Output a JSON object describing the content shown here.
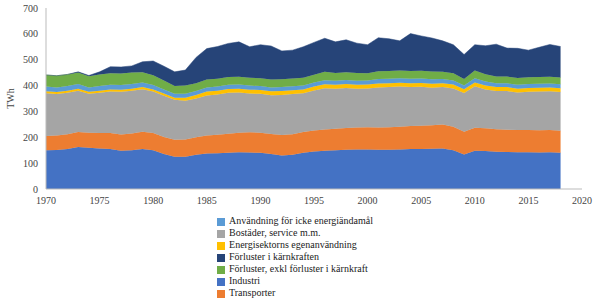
{
  "chart_data": {
    "type": "area",
    "stacked": true,
    "y_label": "TWh",
    "x": [
      1970,
      1971,
      1972,
      1973,
      1974,
      1975,
      1976,
      1977,
      1978,
      1979,
      1980,
      1981,
      1982,
      1983,
      1984,
      1985,
      1986,
      1987,
      1988,
      1989,
      1990,
      1991,
      1992,
      1993,
      1994,
      1995,
      1996,
      1997,
      1998,
      1999,
      2000,
      2001,
      2002,
      2003,
      2004,
      2005,
      2006,
      2007,
      2008,
      2009,
      2010,
      2011,
      2012,
      2013,
      2014,
      2015,
      2016,
      2017,
      2018
    ],
    "xlim": [
      1970,
      2020
    ],
    "xticks": [
      1970,
      1975,
      1980,
      1985,
      1990,
      1995,
      2000,
      2005,
      2010,
      2015,
      2020
    ],
    "ylim": [
      0,
      700
    ],
    "yticks": [
      0,
      100,
      200,
      300,
      400,
      500,
      600,
      700
    ],
    "grid": false,
    "legend": "bottom",
    "series": [
      {
        "name": "Industri",
        "color": "#4472C4",
        "values": [
          150,
          151,
          155,
          162,
          160,
          157,
          155,
          148,
          150,
          155,
          150,
          135,
          125,
          125,
          132,
          137,
          138,
          140,
          142,
          141,
          140,
          135,
          130,
          132,
          140,
          145,
          148,
          150,
          152,
          153,
          153,
          152,
          152,
          153,
          155,
          155,
          156,
          157,
          150,
          133,
          148,
          147,
          144,
          143,
          142,
          142,
          141,
          142,
          140
        ]
      },
      {
        "name": "Transporter",
        "color": "#ED7D31",
        "values": [
          55,
          56,
          57,
          58,
          58,
          60,
          62,
          63,
          65,
          66,
          67,
          66,
          65,
          66,
          68,
          70,
          72,
          74,
          76,
          78,
          78,
          78,
          79,
          80,
          80,
          81,
          82,
          83,
          84,
          85,
          86,
          86,
          87,
          88,
          89,
          90,
          91,
          92,
          91,
          88,
          89,
          88,
          87,
          86,
          86,
          86,
          86,
          86,
          85
        ]
      },
      {
        "name": "Bostäder, service m.m.",
        "color": "#A5A5A5",
        "values": [
          165,
          160,
          160,
          160,
          150,
          155,
          160,
          165,
          165,
          165,
          160,
          160,
          155,
          150,
          150,
          155,
          155,
          158,
          155,
          150,
          150,
          150,
          155,
          155,
          150,
          155,
          160,
          155,
          155,
          150,
          150,
          155,
          155,
          155,
          150,
          150,
          145,
          145,
          148,
          150,
          160,
          150,
          148,
          150,
          145,
          148,
          150,
          150,
          150
        ]
      },
      {
        "name": "Energisektorns egenanvändning",
        "color": "#FFC000",
        "values": [
          8,
          8,
          8,
          8,
          8,
          8,
          8,
          8,
          8,
          8,
          8,
          8,
          8,
          12,
          14,
          15,
          15,
          15,
          15,
          15,
          15,
          15,
          15,
          15,
          15,
          15,
          15,
          15,
          15,
          15,
          15,
          15,
          15,
          15,
          15,
          15,
          15,
          15,
          15,
          15,
          15,
          15,
          15,
          15,
          15,
          15,
          15,
          15,
          15
        ]
      },
      {
        "name": "Användning för icke energiändamål",
        "color": "#5B9BD5",
        "values": [
          18,
          18,
          18,
          18,
          17,
          18,
          18,
          18,
          18,
          18,
          17,
          16,
          15,
          15,
          15,
          16,
          16,
          16,
          16,
          16,
          15,
          15,
          15,
          15,
          15,
          16,
          16,
          16,
          16,
          16,
          16,
          17,
          17,
          17,
          17,
          17,
          17,
          16,
          16,
          14,
          16,
          16,
          15,
          15,
          15,
          15,
          15,
          15,
          15
        ]
      },
      {
        "name": "Förluster, exkl förluster i kärnkraft",
        "color": "#70AD47",
        "values": [
          45,
          45,
          45,
          45,
          43,
          45,
          45,
          45,
          45,
          40,
          38,
          35,
          30,
          32,
          30,
          30,
          30,
          30,
          30,
          30,
          30,
          30,
          30,
          30,
          30,
          30,
          32,
          30,
          30,
          30,
          28,
          30,
          30,
          30,
          30,
          30,
          30,
          28,
          28,
          25,
          30,
          28,
          26,
          26,
          26,
          26,
          26,
          26,
          26
        ]
      },
      {
        "name": "Förluster i kärnkraften",
        "color": "#264478",
        "values": [
          0,
          0,
          0,
          2,
          3,
          10,
          25,
          25,
          25,
          40,
          55,
          55,
          55,
          60,
          100,
          120,
          125,
          130,
          135,
          120,
          130,
          130,
          110,
          110,
          120,
          125,
          130,
          120,
          125,
          115,
          110,
          130,
          125,
          115,
          145,
          135,
          130,
          120,
          110,
          95,
          100,
          110,
          125,
          110,
          115,
          105,
          115,
          125,
          120
        ]
      }
    ]
  }
}
